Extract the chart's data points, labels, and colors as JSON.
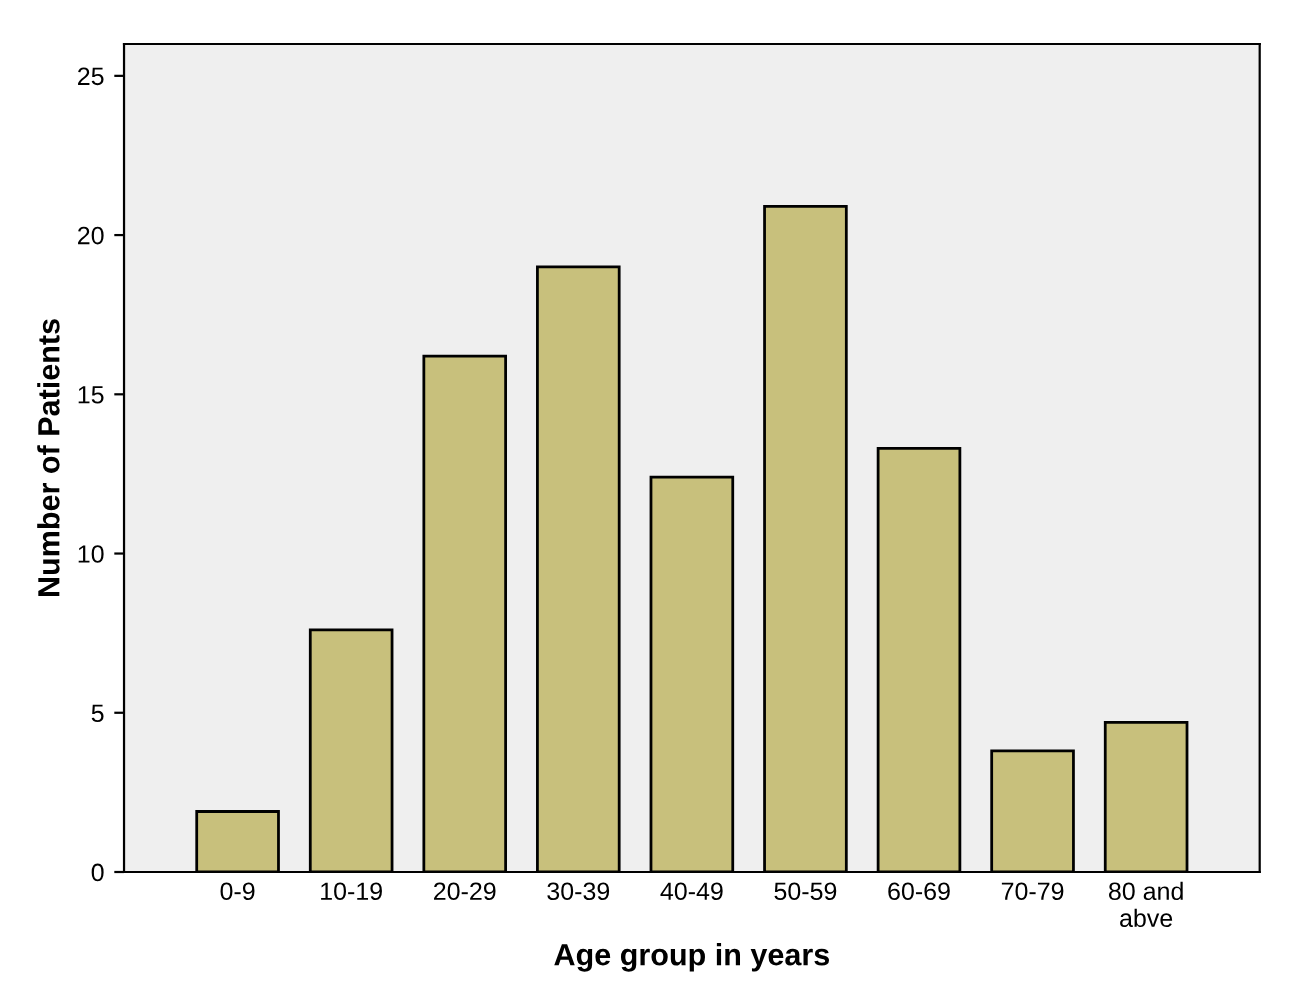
{
  "chart_data": {
    "type": "bar",
    "xlabel": "Age group in years",
    "ylabel": "Number of Patients",
    "categories": [
      "0-9",
      "10-19",
      "20-29",
      "30-39",
      "40-49",
      "50-59",
      "60-69",
      "70-79",
      "80 and\nabve"
    ],
    "values": [
      1.9,
      7.6,
      16.2,
      19.0,
      12.4,
      20.9,
      13.3,
      3.8,
      4.7
    ],
    "color": "#c8c07c",
    "ylim": [
      0,
      26
    ],
    "yticks": [
      0,
      5,
      10,
      15,
      20,
      25
    ],
    "grid": false
  }
}
